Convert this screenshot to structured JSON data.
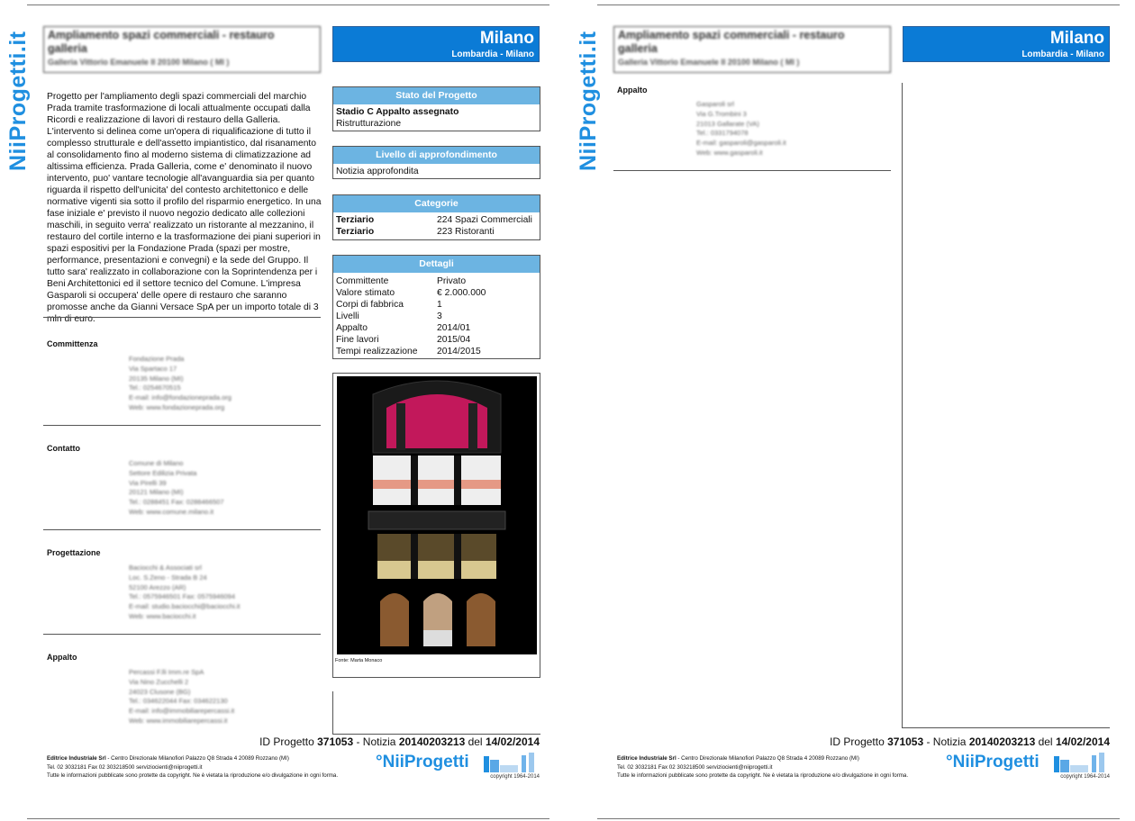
{
  "logo_vertical": "NiiProgetti.it",
  "header": {
    "title": "Ampliamento spazi commerciali - restauro galleria",
    "address": "Galleria Vittorio Emanuele II  20100 Milano ( MI )"
  },
  "city": {
    "name": "Milano",
    "region": "Lombardia - Milano"
  },
  "description": "Progetto per l'ampliamento degli spazi commerciali del marchio Prada tramite trasformazione di locali attualmente occupati dalla Ricordi e realizzazione di lavori di restauro della Galleria. L'intervento si delinea come un'opera di riqualificazione di tutto il complesso strutturale e dell'assetto impiantistico, dal risanamento al consolidamento fino al moderno sistema di climatizzazione ad altissima efficienza. Prada Galleria, come e' denominato il nuovo intervento, puo' vantare tecnologie all'avanguardia sia per quanto riguarda il rispetto dell'unicita' del contesto architettonico e delle normative vigenti sia sotto il profilo del risparmio energetico. In una fase iniziale e' previsto il nuovo negozio dedicato alle collezioni maschili, in seguito verra' realizzato un ristorante al mezzanino, il restauro del cortile interno e la trasformazione dei piani superiori in spazi espositivi per la Fondazione Prada (spazi per mostre, performance, presentazioni e convegni) e la sede del Gruppo. Il tutto sara' realizzato in collaborazione con la Soprintendenza per i Beni Architettonici ed il settore tecnico del Comune. L'impresa Gasparoli si occupera' delle opere di restauro che saranno promosse anche da Gianni Versace SpA per un importo totale di 3 mln di euro.",
  "sections": [
    {
      "title": "Committenza",
      "lines": [
        "Fondazione Prada",
        "Via Spartaco 17",
        "20135 Milano  (MI)",
        "Tel.: 0254670515",
        "E-mail: info@fondazioneprada.org",
        "Web: www.fondazioneprada.org"
      ]
    },
    {
      "title": "Contatto",
      "lines": [
        "Comune di Milano",
        "Settore Edilizia Privata",
        "Via Pirelli 39",
        "20121 Milano  (MI)",
        "Tel.: 0288451    Fax: 0288466507",
        "Web: www.comune.milano.it"
      ]
    },
    {
      "title": "Progettazione",
      "lines": [
        "Baciocchi & Associati srl",
        "Loc. S.Zeno - Strada B 24",
        "52100 Arezzo  (AR)",
        "Tel.: 0575946501    Fax: 0575946094",
        "E-mail: studio.baciocchi@baciocchi.it",
        "Web: www.baciocchi.it"
      ]
    },
    {
      "title": "Appalto",
      "lines": [
        "Percassi F.lli Imm.re SpA",
        "Via Nino Zucchelli 2",
        "24023 Clusone  (BG)",
        "Tel.: 034622044    Fax: 034622130",
        "E-mail: info@immobiliarepercassi.it",
        "Web: www.immobiliarepercassi.it"
      ]
    }
  ],
  "page2_section": {
    "title": "Appalto",
    "lines": [
      "Gasparoli srl",
      "Via G.Trombini 3",
      "21013 Gallarate  (VA)",
      "Tel.: 0331794078",
      "E-mail: gasparoli@gasparoli.it",
      "Web: www.gasparoli.it"
    ]
  },
  "stato": {
    "title": "Stato del Progetto",
    "stage": "Stadio C Appalto assegnato",
    "type": "Ristrutturazione"
  },
  "livello": {
    "title": "Livello di approfondimento",
    "value": "Notizia approfondita"
  },
  "categorie": {
    "title": "Categorie",
    "rows": [
      [
        "Terziario",
        "224 Spazi Commerciali"
      ],
      [
        "Terziario",
        "223 Ristoranti"
      ]
    ]
  },
  "dettagli": {
    "title": "Dettagli",
    "rows": [
      [
        "Committente",
        "Privato"
      ],
      [
        "Valore stimato",
        "€ 2.000.000"
      ],
      [
        "Corpi di fabbrica",
        "1"
      ],
      [
        "Livelli",
        "3"
      ],
      [
        "Appalto",
        "2014/01"
      ],
      [
        "Fine lavori",
        "2015/04"
      ],
      [
        "Tempi realizzazione",
        "2014/2015"
      ]
    ]
  },
  "image_caption": "Fonte: Marta Monaco",
  "id_line": {
    "l1": "ID Progetto ",
    "id": "371053",
    "l2": "  - Notizia ",
    "notizia": "20140203213",
    "l3": " del ",
    "date": "14/02/2014"
  },
  "footer": {
    "company": "Editrice Industriale Srl",
    "address": " - Centro Direzionale Milanofiori Palazzo Q8 Strada 4  20089 Rozzano (MI)",
    "contacts": "Tel. 02 3032181  Fax 02 303218500 serviziocienti@niiprogetti.it",
    "rights": "Tutte le informazioni pubblicate sono protette da copyright. Ne è vietata la riproduzione e/o divulgazione in ogni forma.",
    "logo": "°NiiProgetti",
    "copyright": "copyright 1964-2014"
  },
  "colors": {
    "brand_blue": "#0b7bd6",
    "box_header": "#6cb4e2"
  }
}
